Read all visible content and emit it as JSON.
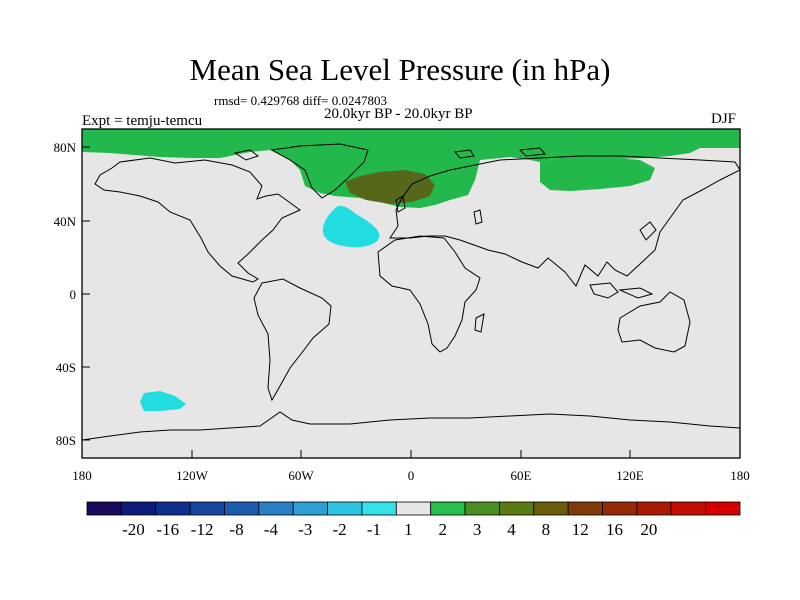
{
  "title": "Mean Sea Level Pressure (in hPa)",
  "stats": "rmsd= 0.429768 diff= 0.0247803",
  "period": "20.0kyr BP - 20.0kyr BP",
  "expt": "Expt = temju-temcu",
  "season": "DJF",
  "axes": {
    "y_ticks": [
      "80N",
      "40N",
      "0",
      "40S",
      "80S"
    ],
    "x_ticks": [
      "180",
      "120W",
      "60W",
      "0",
      "60E",
      "120E",
      "180"
    ]
  },
  "colorbar": {
    "colors": [
      "#1c0b5a",
      "#0c1a78",
      "#0f2f8e",
      "#1746a0",
      "#1b5cb0",
      "#2b7fc6",
      "#2c9fd6",
      "#2ec3e3",
      "#36e1e8",
      "#e6e6e6",
      "#26bf4a",
      "#4b8e22",
      "#5a7a12",
      "#6b5c0a",
      "#823a08",
      "#962a06",
      "#a81a04",
      "#c20c04",
      "#d40000"
    ],
    "labels": [
      "-20",
      "-16",
      "-12",
      "-8",
      "-4",
      "-3",
      "-2",
      "-1",
      "1",
      "2",
      "3",
      "4",
      "8",
      "12",
      "16",
      "20"
    ]
  },
  "map_colors": {
    "background": "#e6e6e6",
    "green": "#23b84b",
    "olive": "#56671a",
    "cyan": "#21dde0"
  }
}
